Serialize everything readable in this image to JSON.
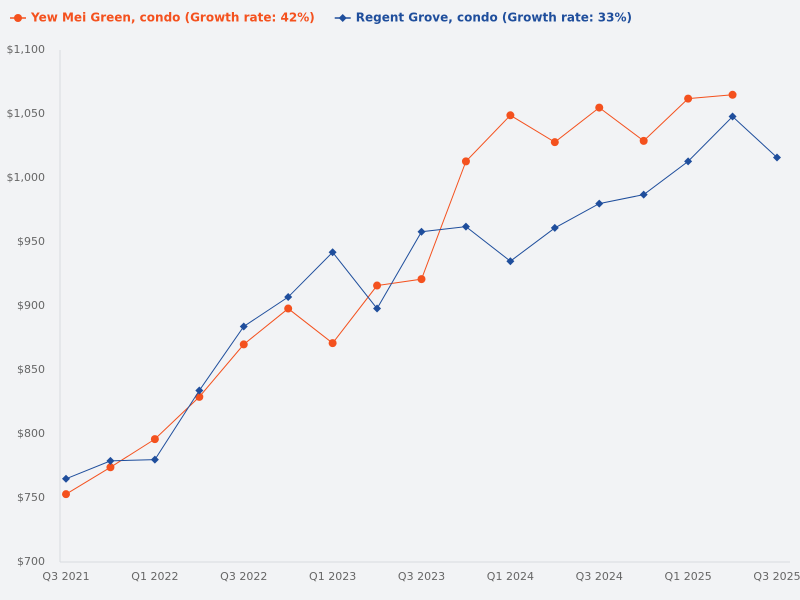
{
  "chart_data": {
    "type": "line",
    "categories": [
      "Q3 2021",
      null,
      "Q1 2022",
      null,
      "Q3 2022",
      null,
      "Q1 2023",
      null,
      "Q3 2023",
      null,
      "Q1 2024",
      null,
      "Q3 2024",
      null,
      "Q1 2025",
      null,
      "Q3 2025"
    ],
    "series": [
      {
        "name": "Yew Mei Green, condo (Growth rate: 42%)",
        "color": "#f4511e",
        "marker": "circle",
        "values": [
          753,
          774,
          796,
          829,
          870,
          898,
          871,
          916,
          921,
          1013,
          1049,
          1028,
          1055,
          1029,
          1062,
          1065,
          null
        ]
      },
      {
        "name": "Regent Grove, condo (Growth rate: 33%)",
        "color": "#1f4e9c",
        "marker": "diamond",
        "values": [
          765,
          779,
          780,
          834,
          884,
          907,
          942,
          898,
          958,
          962,
          935,
          961,
          980,
          987,
          1013,
          1048,
          1016
        ]
      }
    ],
    "ylim": [
      700,
      1100
    ],
    "yticks": [
      {
        "value": 700,
        "label": "$700"
      },
      {
        "value": 750,
        "label": "$750"
      },
      {
        "value": 800,
        "label": "$800"
      },
      {
        "value": 850,
        "label": "$850"
      },
      {
        "value": 900,
        "label": "$900"
      },
      {
        "value": 950,
        "label": "$950"
      },
      {
        "value": 1000,
        "label": "$1,000"
      },
      {
        "value": 1050,
        "label": "$1,050"
      },
      {
        "value": 1100,
        "label": "$1,100"
      }
    ],
    "grid": false,
    "legend": "top"
  }
}
